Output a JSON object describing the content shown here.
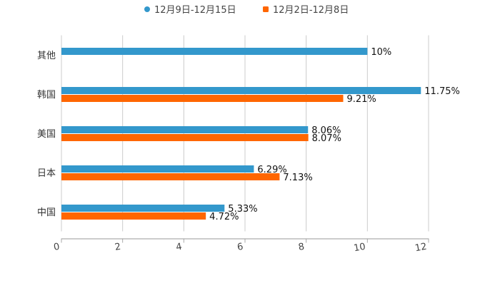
{
  "chart_data": {
    "type": "bar",
    "orientation": "horizontal",
    "title": "",
    "xlabel": "",
    "ylabel": "",
    "categories": [
      "其他",
      "韩国",
      "美国",
      "日本",
      "中国"
    ],
    "series": [
      {
        "name": "12月9日-12月15日",
        "color": "#3398cc",
        "values": [
          10,
          11.75,
          8.06,
          6.29,
          5.33
        ],
        "labels": [
          "10%",
          "11.75%",
          "8.06%",
          "6.29%",
          "5.33%"
        ]
      },
      {
        "name": "12月2日-12月8日",
        "color": "#ff6600",
        "values": [
          null,
          9.21,
          8.07,
          7.13,
          4.72
        ],
        "labels": [
          null,
          "9.21%",
          "8.07%",
          "7.13%",
          "4.72%"
        ]
      }
    ],
    "xlim": [
      0,
      12
    ],
    "xticks": [
      "0",
      "2",
      "4",
      "6",
      "8",
      "10",
      "12"
    ],
    "grid": true,
    "legend_position": "top-center"
  }
}
